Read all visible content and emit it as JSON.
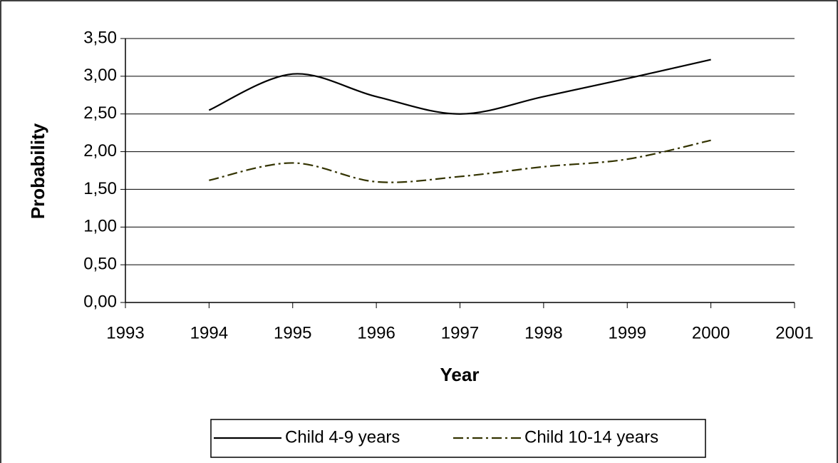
{
  "chart_data": {
    "type": "line",
    "x_label": "Year",
    "y_label": "Probability",
    "x": [
      1994,
      1995,
      1996,
      1997,
      1998,
      1999,
      2000
    ],
    "series": [
      {
        "name": "Child 4-9 years",
        "color": "#000000",
        "dash": "solid",
        "values": [
          2.55,
          3.03,
          2.73,
          2.5,
          2.73,
          2.97,
          3.22
        ]
      },
      {
        "name": "Child 10-14 years",
        "color": "#333300",
        "dash": "dash-dot",
        "values": [
          1.62,
          1.85,
          1.6,
          1.67,
          1.8,
          1.9,
          2.15
        ]
      }
    ],
    "xlim": [
      1993,
      2001
    ],
    "xticks": [
      1993,
      1994,
      1995,
      1996,
      1997,
      1998,
      1999,
      2000,
      2001
    ],
    "ylim": [
      0,
      3.5
    ],
    "yticks": [
      {
        "value": 0,
        "label": "0,00"
      },
      {
        "value": 0.5,
        "label": "0,50"
      },
      {
        "value": 1,
        "label": "1,00"
      },
      {
        "value": 1.5,
        "label": "1,50"
      },
      {
        "value": 2,
        "label": "2,00"
      },
      {
        "value": 2.5,
        "label": "2,50"
      },
      {
        "value": 3,
        "label": "3,00"
      },
      {
        "value": 3.5,
        "label": "3,50"
      }
    ],
    "grid": true,
    "smooth": true,
    "legend": "bottom"
  }
}
